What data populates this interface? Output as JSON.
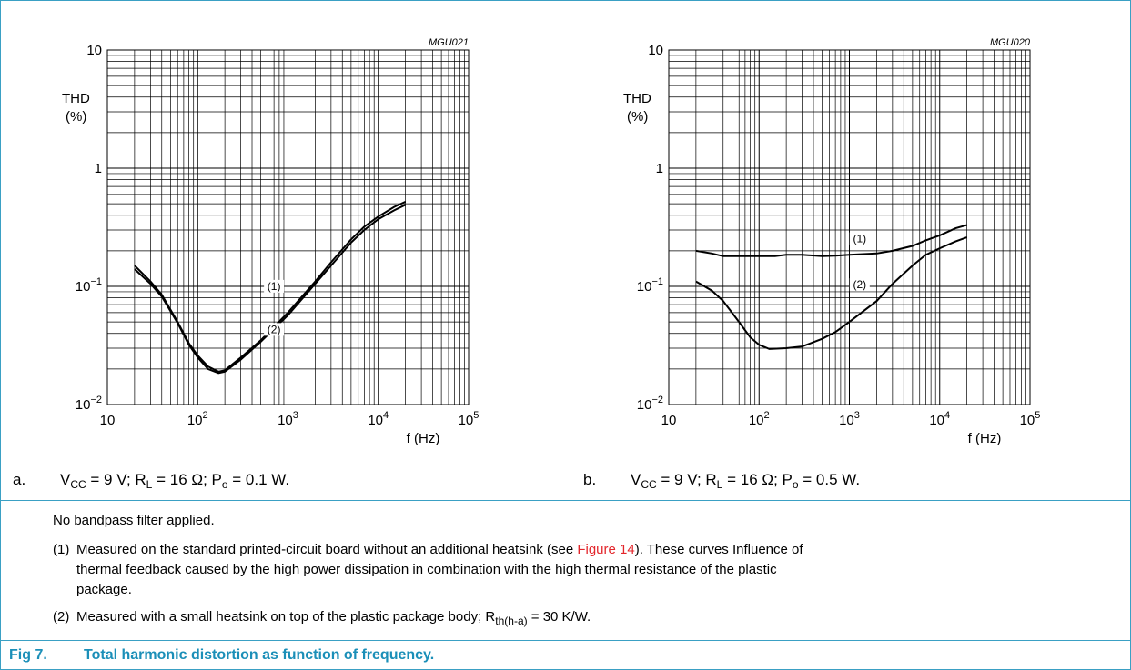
{
  "chart_data": [
    {
      "type": "line",
      "code": "MGU021",
      "y_label_1": "THD",
      "y_label_2": "(%)",
      "x_label": "f (Hz)",
      "x_scale": "log",
      "y_scale": "log",
      "xlim": [
        10,
        100000
      ],
      "ylim": [
        0.01,
        10
      ],
      "x_ticks": [
        {
          "value": 10,
          "base": "10",
          "exp": ""
        },
        {
          "value": 100,
          "base": "10",
          "exp": "2"
        },
        {
          "value": 1000,
          "base": "10",
          "exp": "3"
        },
        {
          "value": 10000,
          "base": "10",
          "exp": "4"
        },
        {
          "value": 100000,
          "base": "10",
          "exp": "5"
        }
      ],
      "y_ticks": [
        {
          "value": 10,
          "base": "10",
          "exp": ""
        },
        {
          "value": 1,
          "base": "1",
          "exp": ""
        },
        {
          "value": 0.1,
          "base": "10",
          "exp": "−1"
        },
        {
          "value": 0.01,
          "base": "10",
          "exp": "−2"
        }
      ],
      "series": [
        {
          "name": "(1)",
          "label_at": [
            700,
            0.095
          ],
          "points": [
            [
              20,
              0.15
            ],
            [
              30,
              0.11
            ],
            [
              40,
              0.085
            ],
            [
              60,
              0.05
            ],
            [
              80,
              0.033
            ],
            [
              100,
              0.026
            ],
            [
              130,
              0.021
            ],
            [
              170,
              0.019
            ],
            [
              200,
              0.0195
            ],
            [
              300,
              0.025
            ],
            [
              500,
              0.035
            ],
            [
              1000,
              0.06
            ],
            [
              2000,
              0.11
            ],
            [
              3000,
              0.16
            ],
            [
              5000,
              0.25
            ],
            [
              7000,
              0.32
            ],
            [
              10000,
              0.39
            ],
            [
              15000,
              0.47
            ],
            [
              20000,
              0.52
            ]
          ]
        },
        {
          "name": "(2)",
          "label_at": [
            700,
            0.041
          ],
          "points": [
            [
              20,
              0.14
            ],
            [
              30,
              0.105
            ],
            [
              40,
              0.082
            ],
            [
              60,
              0.049
            ],
            [
              80,
              0.032
            ],
            [
              100,
              0.025
            ],
            [
              130,
              0.02
            ],
            [
              170,
              0.0185
            ],
            [
              200,
              0.019
            ],
            [
              300,
              0.024
            ],
            [
              500,
              0.034
            ],
            [
              1000,
              0.057
            ],
            [
              2000,
              0.105
            ],
            [
              3000,
              0.15
            ],
            [
              5000,
              0.235
            ],
            [
              7000,
              0.3
            ],
            [
              10000,
              0.37
            ],
            [
              15000,
              0.44
            ],
            [
              20000,
              0.49
            ]
          ]
        }
      ]
    },
    {
      "type": "line",
      "code": "MGU020",
      "y_label_1": "THD",
      "y_label_2": "(%)",
      "x_label": "f (Hz)",
      "x_scale": "log",
      "y_scale": "log",
      "xlim": [
        10,
        100000
      ],
      "ylim": [
        0.01,
        10
      ],
      "x_ticks": [
        {
          "value": 10,
          "base": "10",
          "exp": ""
        },
        {
          "value": 100,
          "base": "10",
          "exp": "2"
        },
        {
          "value": 1000,
          "base": "10",
          "exp": "3"
        },
        {
          "value": 10000,
          "base": "10",
          "exp": "4"
        },
        {
          "value": 100000,
          "base": "10",
          "exp": "5"
        }
      ],
      "y_ticks": [
        {
          "value": 10,
          "base": "10",
          "exp": ""
        },
        {
          "value": 1,
          "base": "1",
          "exp": ""
        },
        {
          "value": 0.1,
          "base": "10",
          "exp": "−1"
        },
        {
          "value": 0.01,
          "base": "10",
          "exp": "−2"
        }
      ],
      "series": [
        {
          "name": "(1)",
          "label_at": [
            1300,
            0.24
          ],
          "points": [
            [
              20,
              0.2
            ],
            [
              30,
              0.19
            ],
            [
              40,
              0.18
            ],
            [
              60,
              0.18
            ],
            [
              80,
              0.18
            ],
            [
              100,
              0.18
            ],
            [
              150,
              0.18
            ],
            [
              200,
              0.185
            ],
            [
              300,
              0.185
            ],
            [
              500,
              0.18
            ],
            [
              700,
              0.182
            ],
            [
              1000,
              0.185
            ],
            [
              2000,
              0.19
            ],
            [
              3000,
              0.2
            ],
            [
              5000,
              0.22
            ],
            [
              7000,
              0.245
            ],
            [
              10000,
              0.27
            ],
            [
              15000,
              0.31
            ],
            [
              20000,
              0.33
            ]
          ]
        },
        {
          "name": "(2)",
          "label_at": [
            1300,
            0.098
          ],
          "points": [
            [
              20,
              0.11
            ],
            [
              30,
              0.092
            ],
            [
              40,
              0.075
            ],
            [
              60,
              0.05
            ],
            [
              80,
              0.037
            ],
            [
              100,
              0.032
            ],
            [
              130,
              0.0295
            ],
            [
              200,
              0.03
            ],
            [
              300,
              0.031
            ],
            [
              500,
              0.036
            ],
            [
              700,
              0.041
            ],
            [
              1000,
              0.05
            ],
            [
              2000,
              0.075
            ],
            [
              3000,
              0.105
            ],
            [
              5000,
              0.15
            ],
            [
              7000,
              0.185
            ],
            [
              10000,
              0.21
            ],
            [
              15000,
              0.24
            ],
            [
              20000,
              0.26
            ]
          ]
        }
      ]
    }
  ],
  "captions": [
    {
      "label": "a.",
      "vcc": "V",
      "vcc_sub": "CC",
      "vcc_val": " = 9 V; R",
      "rl_sub": "L",
      "rl_val": " = 16 Ω; P",
      "po_sub": "o",
      "po_val": " = 0.1 W."
    },
    {
      "label": "b.",
      "vcc": "V",
      "vcc_sub": "CC",
      "vcc_val": " = 9 V; R",
      "rl_sub": "L",
      "rl_val": " = 16 Ω; P",
      "po_sub": "o",
      "po_val": " = 0.5 W."
    }
  ],
  "notes": {
    "general": "No bandpass filter applied.",
    "item1_num": "(1)",
    "item1_text_a": "Measured on the standard printed-circuit board without an additional heatsink (see ",
    "item1_link": "Figure 14",
    "item1_text_b": "). These curves Influence of",
    "item1_line2": "thermal feedback caused by the high power dissipation in combination with the high thermal resistance of the plastic",
    "item1_line3": "package.",
    "item2_num": "(2)",
    "item2_text_a": "Measured with a small heatsink on top of the plastic package body; R",
    "item2_sub": "th(h-a)",
    "item2_text_b": " = 30 K/W."
  },
  "figure": {
    "number": "Fig 7.",
    "title": "Total harmonic distortion as function of frequency."
  }
}
